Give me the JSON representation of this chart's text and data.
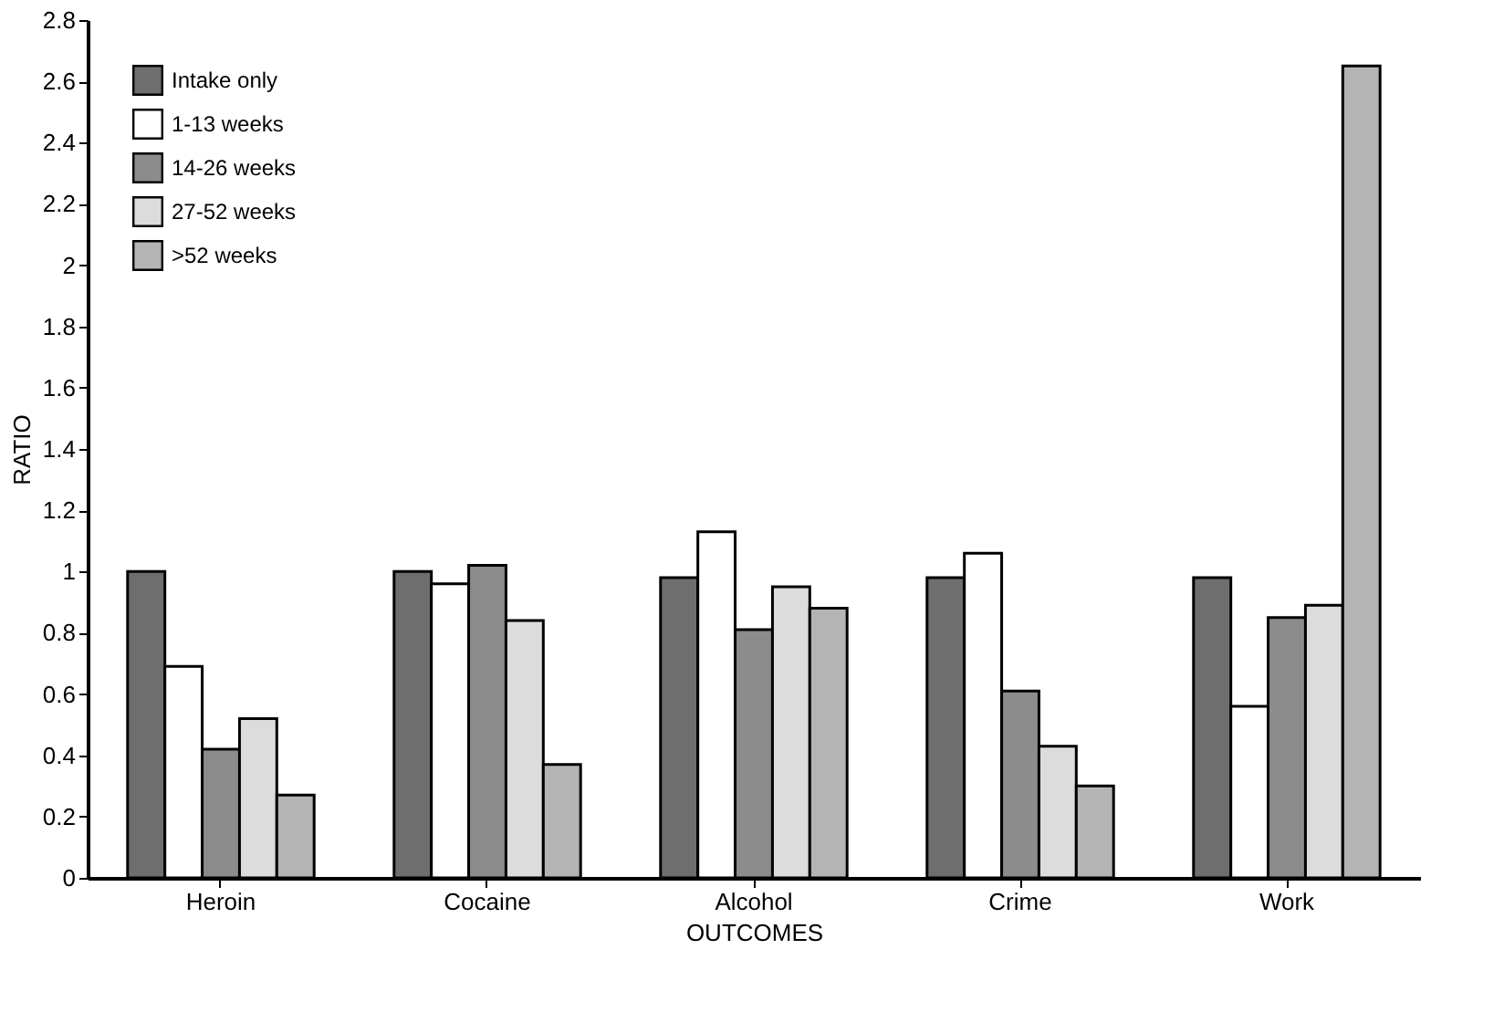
{
  "chart_data": {
    "type": "bar",
    "xlabel": "OUTCOMES",
    "ylabel": "RATIO",
    "categories": [
      "Heroin",
      "Cocaine",
      "Alcohol",
      "Crime",
      "Work"
    ],
    "series": [
      {
        "name": "Intake only",
        "color": "#6e6e6e",
        "values": [
          1.0,
          1.0,
          0.98,
          0.98,
          0.98
        ]
      },
      {
        "name": "1-13 weeks",
        "color": "#ffffff",
        "values": [
          0.69,
          0.96,
          1.13,
          1.06,
          0.56
        ]
      },
      {
        "name": "14-26 weeks",
        "color": "#8c8c8c",
        "values": [
          0.42,
          1.02,
          0.81,
          0.61,
          0.85
        ]
      },
      {
        "name": "27-52 weeks",
        "color": "#dcdcdc",
        "values": [
          0.52,
          0.84,
          0.95,
          0.43,
          0.89
        ]
      },
      {
        "name": ">52 weeks",
        "color": "#b4b4b4",
        "values": [
          0.27,
          0.37,
          0.88,
          0.3,
          2.65
        ]
      }
    ],
    "ylim": [
      0,
      2.8
    ],
    "yticks": [
      0,
      0.2,
      0.4,
      0.6,
      0.8,
      1,
      1.2,
      1.4,
      1.6,
      1.8,
      2,
      2.2,
      2.4,
      2.6,
      2.8
    ],
    "grid": false,
    "legend": "top left"
  }
}
